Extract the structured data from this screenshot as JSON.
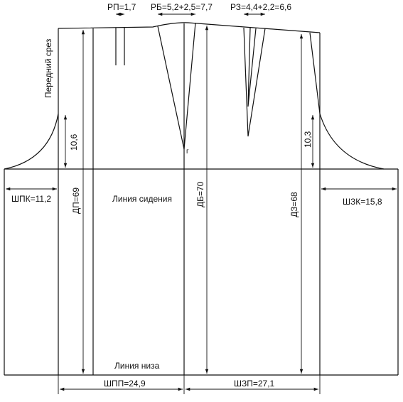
{
  "labels": {
    "front_cut": "Передний срез",
    "rp": "РП=1,7",
    "rb": "РБ=5,2+2,5=7,7",
    "rz": "РЗ=4,4+2,2=6,6",
    "front_curve_depth": "10,6",
    "back_curve_depth": "10,3",
    "point_g": "г",
    "shpk": "ШПК=11,2",
    "shzk": "ШЗК=15,8",
    "dp": "ДП=69",
    "db": "ДБ=70",
    "dz": "ДЗ=68",
    "seat_line": "Линия сидения",
    "hem_line": "Линия низа",
    "shpp": "ШПП=24,9",
    "shzp": "ШЗП=27,1"
  }
}
